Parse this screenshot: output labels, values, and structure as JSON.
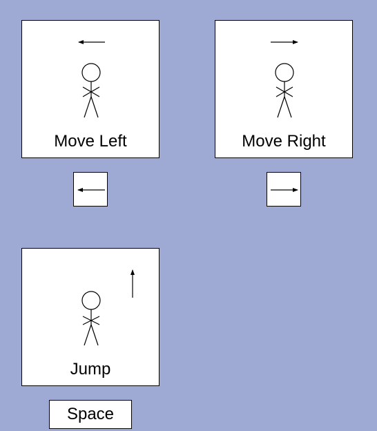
{
  "background_color": "#9eaad4",
  "controls": [
    {
      "id": "move-left",
      "label": "Move Left",
      "direction_icon": "arrow-left-icon",
      "key_icon": "arrow-left-icon"
    },
    {
      "id": "move-right",
      "label": "Move Right",
      "direction_icon": "arrow-right-icon",
      "key_icon": "arrow-right-icon"
    },
    {
      "id": "jump",
      "label": "Jump",
      "direction_icon": "arrow-up-icon",
      "key_label": "Space"
    }
  ]
}
